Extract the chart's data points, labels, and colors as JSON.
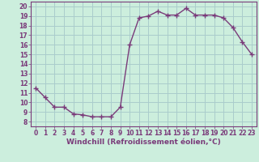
{
  "x": [
    0,
    1,
    2,
    3,
    4,
    5,
    6,
    7,
    8,
    9,
    10,
    11,
    12,
    13,
    14,
    15,
    16,
    17,
    18,
    19,
    20,
    21,
    22,
    23
  ],
  "y": [
    11.5,
    10.5,
    9.5,
    9.5,
    8.8,
    8.7,
    8.5,
    8.5,
    8.5,
    9.5,
    16.0,
    18.8,
    19.0,
    19.5,
    19.1,
    19.1,
    19.8,
    19.1,
    19.1,
    19.1,
    18.8,
    17.8,
    16.3,
    15.0
  ],
  "line_color": "#7a3b7a",
  "marker": "+",
  "markersize": 4,
  "linewidth": 1.0,
  "bg_color": "#cceedd",
  "grid_color": "#aacccc",
  "xlabel": "Windchill (Refroidissement éolien,°C)",
  "xlabel_color": "#7a3b7a",
  "xlabel_fontsize": 6.5,
  "yticks": [
    8,
    9,
    10,
    11,
    12,
    13,
    14,
    15,
    16,
    17,
    18,
    19,
    20
  ],
  "xticks": [
    0,
    1,
    2,
    3,
    4,
    5,
    6,
    7,
    8,
    9,
    10,
    11,
    12,
    13,
    14,
    15,
    16,
    17,
    18,
    19,
    20,
    21,
    22,
    23
  ],
  "ylim": [
    7.5,
    20.5
  ],
  "xlim": [
    -0.5,
    23.5
  ],
  "tick_fontsize": 5.5,
  "tick_color": "#7a3b7a",
  "spine_color": "#7a3b7a"
}
